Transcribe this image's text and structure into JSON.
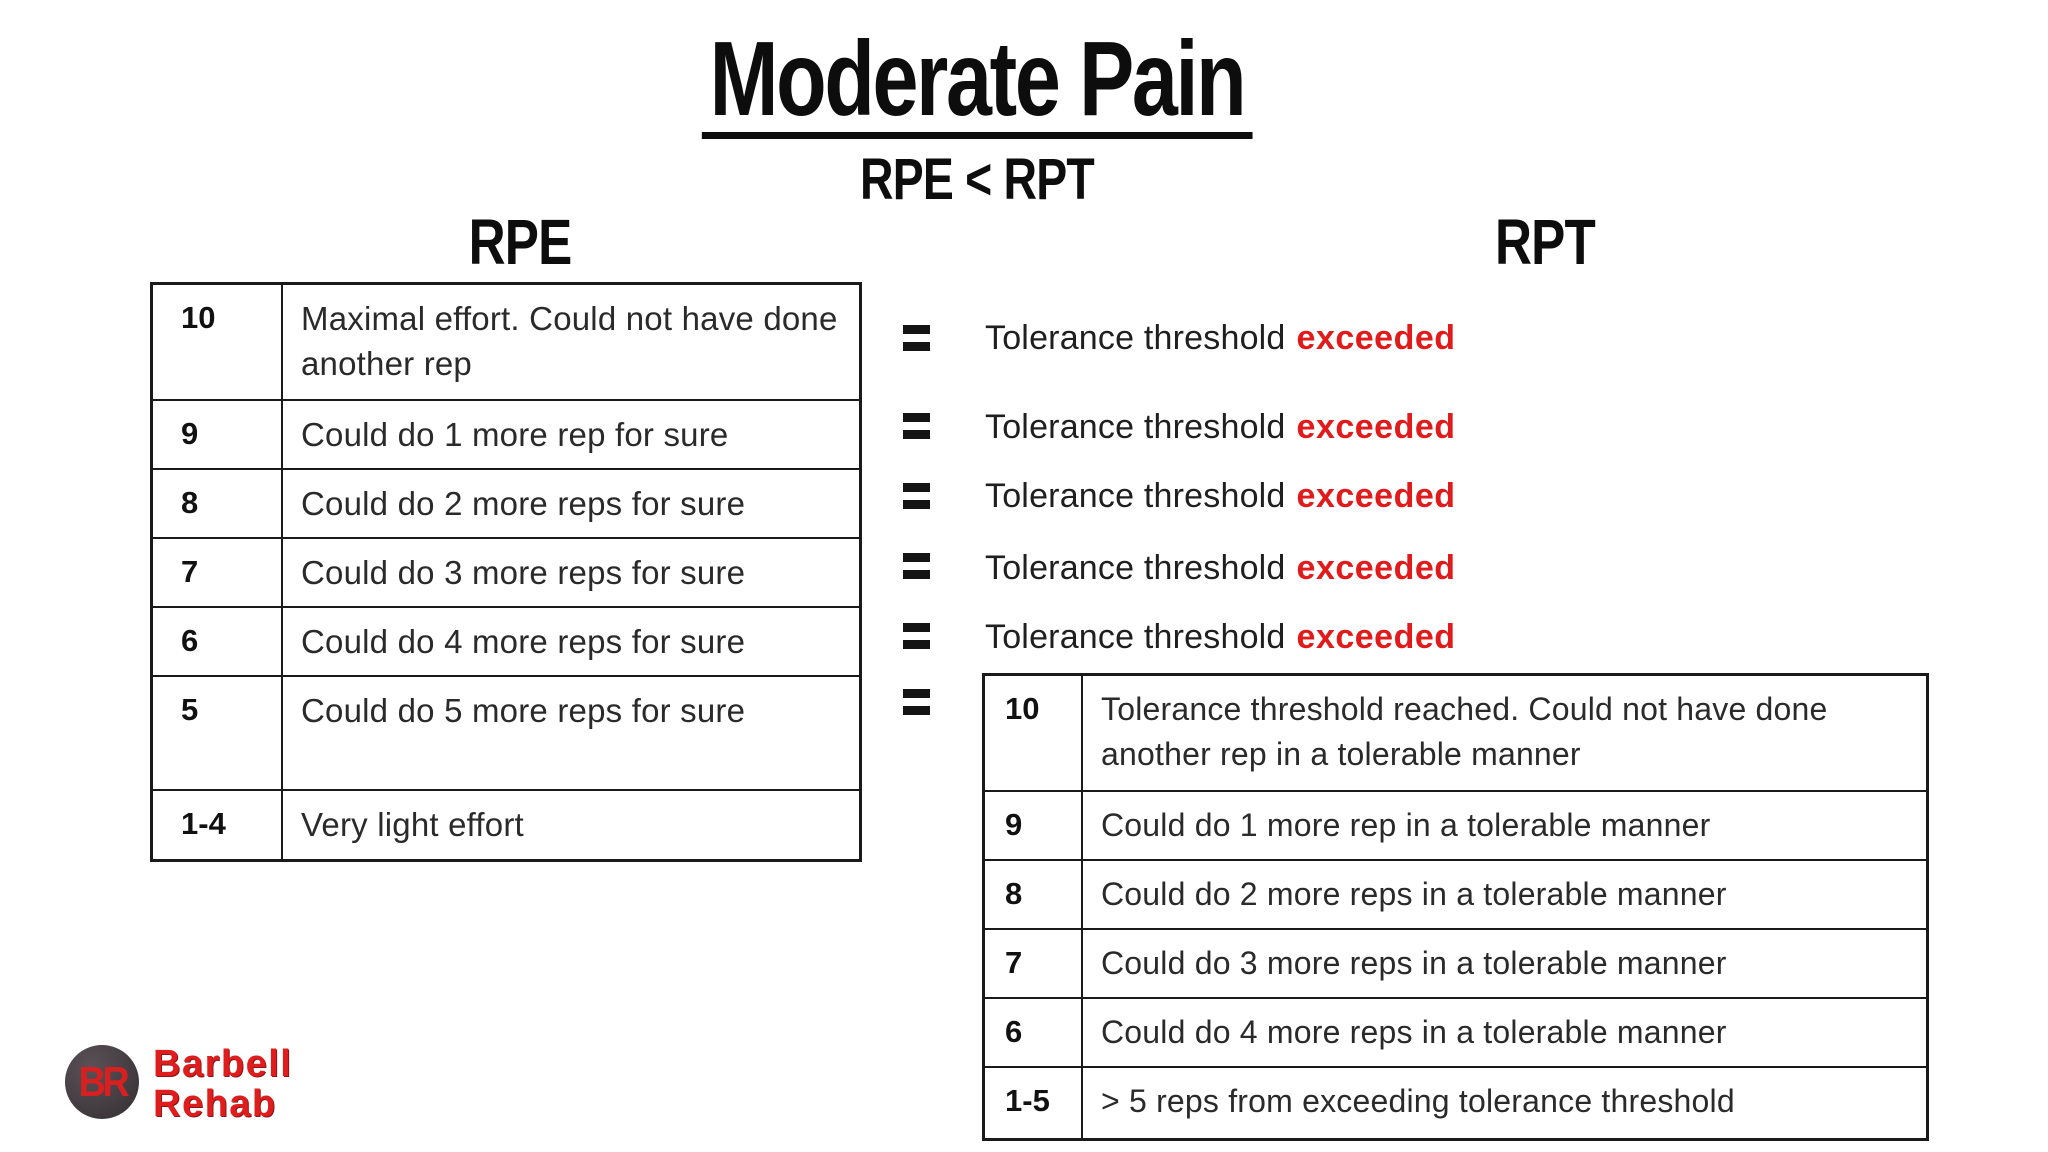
{
  "title": "Moderate Pain",
  "subtitle": "RPE < RPT",
  "colors": {
    "accent_red": "#e11b1b",
    "text_black": "#1a1a1a",
    "logo_red": "#e01d1d",
    "logo_circle_gray": "#453e42"
  },
  "rpe": {
    "header": "RPE",
    "rows": [
      {
        "score": "10",
        "desc": "Maximal effort. Could not have done another rep"
      },
      {
        "score": "9",
        "desc": "Could do 1 more rep for sure"
      },
      {
        "score": "8",
        "desc": "Could do 2 more reps for sure"
      },
      {
        "score": "7",
        "desc": "Could do 3 more reps for sure"
      },
      {
        "score": "6",
        "desc": "Could do 4 more reps for sure"
      },
      {
        "score": "5",
        "desc": "Could do 5 more reps for sure"
      },
      {
        "score": "1-4",
        "desc": "Very light effort"
      }
    ]
  },
  "rpt": {
    "header": "RPT",
    "exceeded_lines": [
      {
        "prefix": "Tolerance threshold",
        "word": "exceeded"
      },
      {
        "prefix": "Tolerance threshold",
        "word": "exceeded"
      },
      {
        "prefix": "Tolerance threshold",
        "word": "exceeded"
      },
      {
        "prefix": "Tolerance threshold",
        "word": "exceeded"
      },
      {
        "prefix": "Tolerance threshold",
        "word": "exceeded"
      }
    ],
    "rows": [
      {
        "score": "10",
        "desc": "Tolerance threshold reached. Could not have done another rep in a tolerable manner"
      },
      {
        "score": "9",
        "desc": "Could do 1 more rep in a tolerable manner"
      },
      {
        "score": "8",
        "desc": "Could do 2 more reps in a tolerable manner"
      },
      {
        "score": "7",
        "desc": "Could do 3 more reps in a tolerable manner"
      },
      {
        "score": "6",
        "desc": "Could do 4 more reps in a tolerable manner"
      },
      {
        "score": "1-5",
        "desc": "> 5 reps from exceeding tolerance threshold"
      }
    ]
  },
  "logo": {
    "monogram": "BR",
    "line1": "Barbell",
    "line2": "Rehab"
  }
}
